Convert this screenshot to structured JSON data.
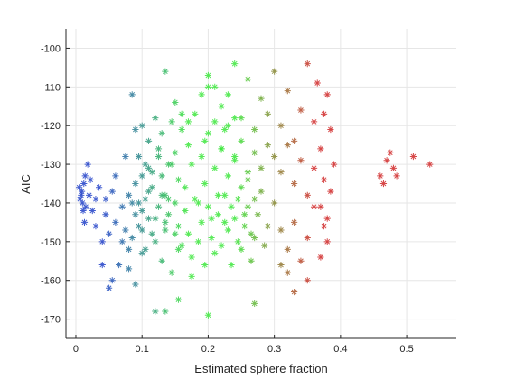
{
  "chart_data": {
    "type": "scatter",
    "title": "",
    "xlabel": "Estimated sphere fraction",
    "ylabel": "AIC",
    "xlim": [
      -0.015,
      0.575
    ],
    "ylim": [
      -175,
      -95
    ],
    "x_ticks": [
      0,
      0.1,
      0.2,
      0.3,
      0.4,
      0.5
    ],
    "x_tick_labels": [
      "0",
      "0.1",
      "0.2",
      "0.3",
      "0.4",
      "0.5"
    ],
    "y_ticks": [
      -170,
      -160,
      -150,
      -140,
      -130,
      -120,
      -110,
      -100
    ],
    "y_tick_labels": [
      "-170",
      "-160",
      "-150",
      "-140",
      "-130",
      "-120",
      "-110",
      "-100"
    ],
    "grid": true,
    "legend": "none",
    "marker": "asterisk",
    "colors": {
      "blue": "#2040c8",
      "green": "#3ce63c",
      "red": "#d02828",
      "axes": "#262626",
      "grid": "#e6e6e6"
    },
    "color_encoding": "points colored on a blue-green-red gradient from low to high sphere fraction",
    "points": [
      [
        0.005,
        -136
      ],
      [
        0.008,
        -138
      ],
      [
        0.01,
        -140
      ],
      [
        0.012,
        -135
      ],
      [
        0.015,
        -141
      ],
      [
        0.006,
        -139
      ],
      [
        0.009,
        -137
      ],
      [
        0.011,
        -142
      ],
      [
        0.014,
        -133
      ],
      [
        0.018,
        -130
      ],
      [
        0.02,
        -138
      ],
      [
        0.013,
        -145
      ],
      [
        0.022,
        -134
      ],
      [
        0.025,
        -142
      ],
      [
        0.03,
        -146
      ],
      [
        0.03,
        -139
      ],
      [
        0.035,
        -136
      ],
      [
        0.04,
        -150
      ],
      [
        0.045,
        -143
      ],
      [
        0.05,
        -148
      ],
      [
        0.055,
        -137
      ],
      [
        0.06,
        -145
      ],
      [
        0.065,
        -156
      ],
      [
        0.07,
        -150
      ],
      [
        0.075,
        -128
      ],
      [
        0.08,
        -152
      ],
      [
        0.085,
        -140
      ],
      [
        0.09,
        -135
      ],
      [
        0.095,
        -146
      ],
      [
        0.05,
        -162
      ],
      [
        0.055,
        -160
      ],
      [
        0.04,
        -156
      ],
      [
        0.045,
        -139
      ],
      [
        0.06,
        -133
      ],
      [
        0.07,
        -141
      ],
      [
        0.075,
        -147
      ],
      [
        0.08,
        -138
      ],
      [
        0.085,
        -149
      ],
      [
        0.1,
        -142
      ],
      [
        0.11,
        -137
      ],
      [
        0.12,
        -144
      ],
      [
        0.13,
        -133
      ],
      [
        0.14,
        -139
      ],
      [
        0.15,
        -148
      ],
      [
        0.1,
        -153
      ],
      [
        0.11,
        -131
      ],
      [
        0.125,
        -126
      ],
      [
        0.09,
        -161
      ],
      [
        0.08,
        -157
      ],
      [
        0.135,
        -145
      ],
      [
        0.1,
        -133
      ],
      [
        0.115,
        -148
      ],
      [
        0.13,
        -138
      ],
      [
        0.145,
        -130
      ],
      [
        0.155,
        -152
      ],
      [
        0.09,
        -143
      ],
      [
        0.105,
        -139
      ],
      [
        0.085,
        -112
      ],
      [
        0.09,
        -121
      ],
      [
        0.095,
        -128
      ],
      [
        0.1,
        -120
      ],
      [
        0.105,
        -130
      ],
      [
        0.11,
        -124
      ],
      [
        0.115,
        -132
      ],
      [
        0.12,
        -118
      ],
      [
        0.125,
        -128
      ],
      [
        0.13,
        -122
      ],
      [
        0.135,
        -138
      ],
      [
        0.14,
        -130
      ],
      [
        0.145,
        -119
      ],
      [
        0.15,
        -127
      ],
      [
        0.155,
        -134
      ],
      [
        0.16,
        -121
      ],
      [
        0.165,
        -136
      ],
      [
        0.17,
        -125
      ],
      [
        0.175,
        -130
      ],
      [
        0.18,
        -117
      ],
      [
        0.185,
        -140
      ],
      [
        0.19,
        -128
      ],
      [
        0.195,
        -135
      ],
      [
        0.2,
        -122
      ],
      [
        0.205,
        -144
      ],
      [
        0.21,
        -131
      ],
      [
        0.215,
        -138
      ],
      [
        0.22,
        -126
      ],
      [
        0.225,
        -145
      ],
      [
        0.23,
        -133
      ],
      [
        0.235,
        -141
      ],
      [
        0.24,
        -129
      ],
      [
        0.245,
        -150
      ],
      [
        0.25,
        -136
      ],
      [
        0.255,
        -143
      ],
      [
        0.26,
        -132
      ],
      [
        0.265,
        -148
      ],
      [
        0.27,
        -139
      ],
      [
        0.095,
        -140
      ],
      [
        0.1,
        -147
      ],
      [
        0.105,
        -152
      ],
      [
        0.11,
        -144
      ],
      [
        0.115,
        -136
      ],
      [
        0.12,
        -150
      ],
      [
        0.125,
        -141
      ],
      [
        0.13,
        -155
      ],
      [
        0.135,
        -147
      ],
      [
        0.14,
        -143
      ],
      [
        0.145,
        -158
      ],
      [
        0.15,
        -140
      ],
      [
        0.155,
        -146
      ],
      [
        0.16,
        -151
      ],
      [
        0.165,
        -142
      ],
      [
        0.17,
        -148
      ],
      [
        0.175,
        -154
      ],
      [
        0.18,
        -139
      ],
      [
        0.185,
        -150
      ],
      [
        0.19,
        -145
      ],
      [
        0.195,
        -156
      ],
      [
        0.2,
        -141
      ],
      [
        0.205,
        -149
      ],
      [
        0.21,
        -153
      ],
      [
        0.215,
        -143
      ],
      [
        0.22,
        -151
      ],
      [
        0.225,
        -138
      ],
      [
        0.23,
        -147
      ],
      [
        0.235,
        -156
      ],
      [
        0.24,
        -144
      ],
      [
        0.245,
        -139
      ],
      [
        0.25,
        -152
      ],
      [
        0.255,
        -146
      ],
      [
        0.26,
        -141
      ],
      [
        0.265,
        -155
      ],
      [
        0.27,
        -149
      ],
      [
        0.275,
        -143
      ],
      [
        0.28,
        -137
      ],
      [
        0.285,
        -151
      ],
      [
        0.29,
        -146
      ],
      [
        0.2,
        -107
      ],
      [
        0.21,
        -110
      ],
      [
        0.22,
        -115
      ],
      [
        0.23,
        -112
      ],
      [
        0.24,
        -104
      ],
      [
        0.25,
        -118
      ],
      [
        0.26,
        -108
      ],
      [
        0.27,
        -121
      ],
      [
        0.28,
        -113
      ],
      [
        0.29,
        -117
      ],
      [
        0.3,
        -106
      ],
      [
        0.31,
        -120
      ],
      [
        0.32,
        -111
      ],
      [
        0.33,
        -124
      ],
      [
        0.34,
        -116
      ],
      [
        0.35,
        -104
      ],
      [
        0.36,
        -119
      ],
      [
        0.365,
        -109
      ],
      [
        0.37,
        -126
      ],
      [
        0.38,
        -112
      ],
      [
        0.3,
        -128
      ],
      [
        0.31,
        -132
      ],
      [
        0.32,
        -125
      ],
      [
        0.33,
        -135
      ],
      [
        0.34,
        -129
      ],
      [
        0.35,
        -138
      ],
      [
        0.36,
        -131
      ],
      [
        0.37,
        -141
      ],
      [
        0.375,
        -134
      ],
      [
        0.38,
        -144
      ],
      [
        0.385,
        -137
      ],
      [
        0.29,
        -125
      ],
      [
        0.28,
        -131
      ],
      [
        0.27,
        -127
      ],
      [
        0.26,
        -134
      ],
      [
        0.25,
        -124
      ],
      [
        0.24,
        -128
      ],
      [
        0.23,
        -120
      ],
      [
        0.22,
        -126
      ],
      [
        0.21,
        -119
      ],
      [
        0.3,
        -140
      ],
      [
        0.31,
        -147
      ],
      [
        0.32,
        -152
      ],
      [
        0.33,
        -145
      ],
      [
        0.34,
        -155
      ],
      [
        0.35,
        -149
      ],
      [
        0.36,
        -141
      ],
      [
        0.37,
        -154
      ],
      [
        0.375,
        -146
      ],
      [
        0.38,
        -150
      ],
      [
        0.32,
        -158
      ],
      [
        0.35,
        -160
      ],
      [
        0.33,
        -163
      ],
      [
        0.27,
        -166
      ],
      [
        0.31,
        -156
      ],
      [
        0.12,
        -168
      ],
      [
        0.135,
        -168
      ],
      [
        0.2,
        -169
      ],
      [
        0.175,
        -159
      ],
      [
        0.155,
        -165
      ],
      [
        0.2,
        -110
      ],
      [
        0.15,
        -114
      ],
      [
        0.135,
        -106
      ],
      [
        0.24,
        -118
      ],
      [
        0.16,
        -117
      ],
      [
        0.19,
        -112
      ],
      [
        0.225,
        -121
      ],
      [
        0.195,
        -124
      ],
      [
        0.17,
        -119
      ],
      [
        0.46,
        -133
      ],
      [
        0.465,
        -135
      ],
      [
        0.47,
        -129
      ],
      [
        0.475,
        -127
      ],
      [
        0.48,
        -131
      ],
      [
        0.485,
        -133
      ],
      [
        0.51,
        -128
      ],
      [
        0.535,
        -130
      ],
      [
        0.39,
        -130
      ],
      [
        0.385,
        -121
      ],
      [
        0.375,
        -117
      ]
    ]
  }
}
